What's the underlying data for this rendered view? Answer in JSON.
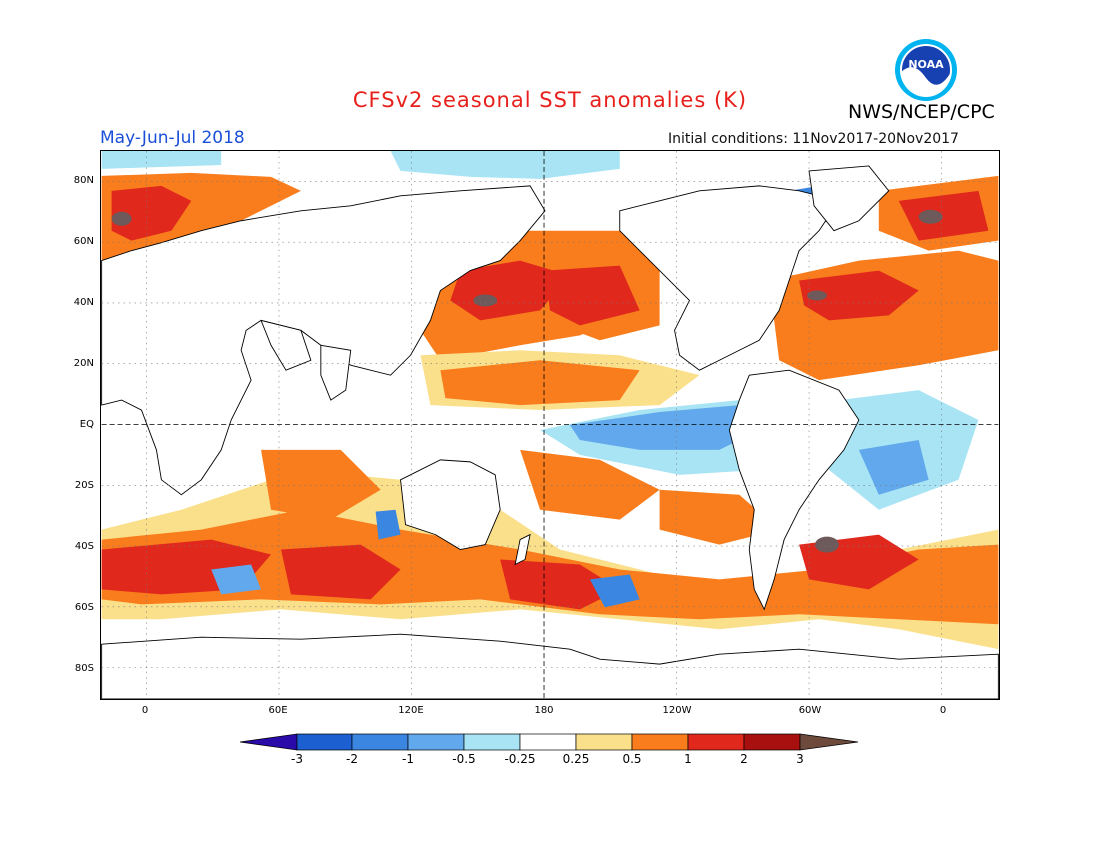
{
  "header": {
    "title": "CFSv2 seasonal SST anomalies (K)",
    "agency": "NWS/NCEP/CPC",
    "period": "May-Jun-Jul 2018",
    "initial_conditions": "Initial conditions: 11Nov2017-20Nov2017",
    "logo_text": "NOAA"
  },
  "map": {
    "lat_labels": [
      "80N",
      "60N",
      "40N",
      "20N",
      "EQ",
      "20S",
      "40S",
      "60S",
      "80S"
    ],
    "lon_labels": [
      "0",
      "60E",
      "120E",
      "180",
      "120W",
      "60W",
      "0"
    ]
  },
  "colorbar": {
    "labels": [
      "-3",
      "-2",
      "-1",
      "-0.5",
      "-0.25",
      "0.25",
      "0.5",
      "1",
      "2",
      "3"
    ],
    "colors": [
      "#2a0aa8",
      "#1c5fd0",
      "#3b86e0",
      "#62a8ec",
      "#a9e4f4",
      "#ffffff",
      "#fbe08c",
      "#f97d1c",
      "#e0281c",
      "#a81010",
      "#6e4a3c"
    ]
  },
  "colors": {
    "title": "#e8201c",
    "period": "#1a4fd8",
    "land": "#ffffff",
    "warm_light": "#fbe08c",
    "warm_mid": "#f97d1c",
    "warm_strong": "#e0281c",
    "warm_extreme": "#a81010",
    "warm_max": "#6e5a5a",
    "cool_light": "#a9e4f4",
    "cool_mid": "#62a8ec",
    "cool_strong": "#3b86e0"
  }
}
